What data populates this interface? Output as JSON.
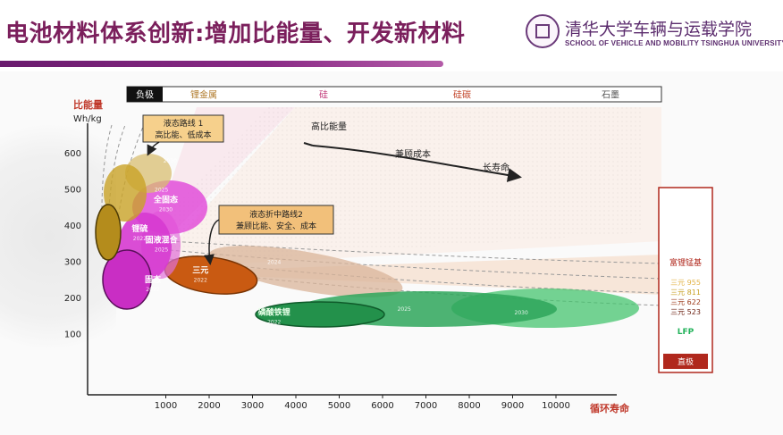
{
  "header": {
    "title": "电池材料体系创新:增加比能量、开发新材料",
    "university_cn": "清华大学车辆与运载学院",
    "university_en": "SCHOOL OF VEHICLE AND MOBILITY TSINGHUA UNIVERSITY"
  },
  "colors": {
    "title": "#7b1f5c",
    "accent_bar": "#7a2478",
    "liquid": "#c9a227",
    "solid": "#d63ad0",
    "ternary": "#c95a12",
    "lfp": "#22b25a",
    "direction_box": "#c0392b"
  },
  "chart_data": {
    "type": "scatter",
    "ylabel_top": "比能量",
    "ylabel_unit": "Wh/kg",
    "xlabel": "循环寿命",
    "x_ticks": [
      1000,
      2000,
      3000,
      4000,
      5000,
      6000,
      7000,
      8000,
      9000,
      10000
    ],
    "y_ticks": [
      100,
      200,
      300,
      400,
      500,
      600
    ],
    "xlim": [
      0,
      10000
    ],
    "ylim": [
      0,
      700
    ],
    "anode_bar": {
      "label": "负极",
      "segments": [
        "锂金属",
        "硅",
        "硅碳",
        "石墨"
      ]
    },
    "regions": [
      {
        "label": "三元",
        "year": "2022",
        "x": 1800,
        "y": 265,
        "color": "ternary"
      },
      {
        "label": "",
        "year": "2024",
        "x": 3500,
        "y": 300,
        "color": "ternary"
      },
      {
        "label": "磷酸铁锂",
        "year": "2022",
        "x": 3500,
        "y": 150,
        "color": "lfp"
      },
      {
        "label": "",
        "year": "2025",
        "x": 6500,
        "y": 170,
        "color": "lfp"
      },
      {
        "label": "",
        "year": "2030",
        "x": 9200,
        "y": 160,
        "color": "lfp"
      },
      {
        "label": "固态",
        "year": "2022",
        "x": 700,
        "y": 240,
        "color": "solid"
      },
      {
        "label": "固液混合",
        "year": "2025",
        "x": 900,
        "y": 350,
        "color": "solid"
      },
      {
        "label": "全固态",
        "year": "2030",
        "x": 1000,
        "y": 460,
        "color": "solid"
      },
      {
        "label": "锂硫",
        "year": "2022",
        "x": 400,
        "y": 380,
        "color": "liquid"
      },
      {
        "label": "",
        "year": "2025",
        "x": 900,
        "y": 500,
        "color": "liquid"
      },
      {
        "label": "",
        "year": "2030",
        "x": 1100,
        "y": 580,
        "color": "liquid"
      }
    ],
    "annotations": {
      "route1_title": "液态路线 1",
      "route1_desc": "高比能、低成本",
      "route2_title": "液态折中路线2",
      "route2_desc": "兼顾比能、安全、成本",
      "high_energy": "高比能量",
      "balance_cost": "兼顾成本",
      "long_life": "长寿命"
    },
    "side_legend": {
      "title": "富锂锰基",
      "items": [
        "三元 955",
        "三元 811",
        "三元 622",
        "三元 523"
      ],
      "lfp": "LFP",
      "direction": "直极"
    }
  }
}
